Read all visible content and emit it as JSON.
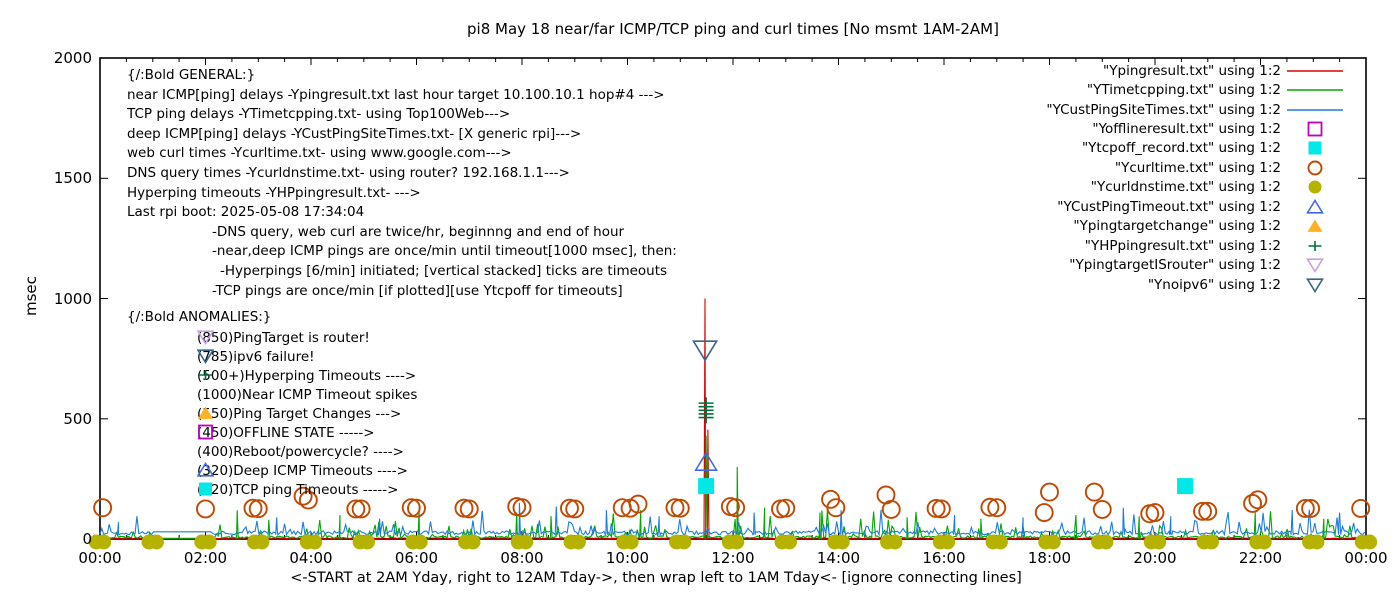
{
  "title": "pi8 May 18  near/far ICMP/TCP ping and curl times [No msmt 1AM-2AM]",
  "axes": {
    "ylabel": "msec",
    "y_ticks": [
      0,
      500,
      1000,
      1500,
      2000
    ],
    "x_ticks": [
      {
        "h": 0,
        "label": "00:00"
      },
      {
        "h": 2,
        "label": "02:00"
      },
      {
        "h": 4,
        "label": "04:00"
      },
      {
        "h": 6,
        "label": "06:00"
      },
      {
        "h": 8,
        "label": "08:00"
      },
      {
        "h": 10,
        "label": "10:00"
      },
      {
        "h": 12,
        "label": "12:00"
      },
      {
        "h": 14,
        "label": "14:00"
      },
      {
        "h": 16,
        "label": "16:00"
      },
      {
        "h": 18,
        "label": "18:00"
      },
      {
        "h": 20,
        "label": "20:00"
      },
      {
        "h": 22,
        "label": "22:00"
      },
      {
        "h": 24,
        "label": "00:00"
      }
    ],
    "caption": "<-START at 2AM Yday, right to 12AM Tday->, then wrap left to 1AM Tday<- [ignore connecting lines]"
  },
  "general_notes": {
    "lines": [
      {
        "t": "{/:Bold GENERAL:}",
        "i": 0
      },
      {
        "t": "near ICMP[ping] delays -Ypingresult.txt last hour target 10.100.10.1 hop#4 --->",
        "i": 0
      },
      {
        "t": "TCP ping delays -YTimetcpping.txt- using Top100Web--->",
        "i": 0
      },
      {
        "t": "deep ICMP[ping] delays -YCustPingSiteTimes.txt- [X generic rpi]--->",
        "i": 0
      },
      {
        "t": "web curl times -Ycurltime.txt- using www.google.com--->",
        "i": 0
      },
      {
        "t": "DNS query times -Ycurldnstime.txt- using router? 192.168.1.1--->",
        "i": 0
      },
      {
        "t": "Hyperping timeouts -YHPpingresult.txt- --->",
        "i": 0
      },
      {
        "t": "Last rpi boot: 2025-05-08 17:34:04",
        "i": 0
      },
      {
        "t": "-DNS query, web curl are twice/hr, beginnng and end of hour",
        "i": 85
      },
      {
        "t": "-near,deep ICMP pings are once/min until timeout[1000 msec], then:",
        "i": 85
      },
      {
        "t": "-Hyperpings [6/min] initiated; [vertical stacked] ticks are timeouts",
        "i": 93
      },
      {
        "t": "-TCP pings are once/min [if plotted][use Ytcpoff for timeouts]",
        "i": 85
      }
    ]
  },
  "anomalies": {
    "header": "{/:Bold ANOMALIES:}",
    "rows": [
      {
        "marker": "open-triangle-down",
        "color": "#c9a0e8",
        "text": "(850)PingTarget is router!"
      },
      {
        "marker": "open-triangle-down",
        "color": "#36648b",
        "text": "(785)ipv6 failure!"
      },
      {
        "marker": "plus",
        "color": "#007040",
        "text": "(500+)Hyperping Timeouts ---->"
      },
      {
        "marker": null,
        "color": null,
        "text": "(1000)Near ICMP Timeout spikes"
      },
      {
        "marker": "filled-triangle-up",
        "color": "#ffb025",
        "text": "(550)Ping Target Changes --->"
      },
      {
        "marker": "open-square",
        "color": "#bf00bf",
        "text": "(450)OFFLINE STATE ----->"
      },
      {
        "marker": null,
        "color": null,
        "text": "(400)Reboot/powercycle? ---->"
      },
      {
        "marker": "open-triangle-up",
        "color": "#4169e1",
        "text": "(320)Deep ICMP Timeouts ---->"
      },
      {
        "marker": "filled-square",
        "color": "#00e8e8",
        "text": "(220)TCP ping Timeouts ----->"
      }
    ]
  },
  "legend": {
    "items": [
      {
        "label": "\"Ypingresult.txt\" using 1:2",
        "marker": "line",
        "color": "#dc0000"
      },
      {
        "label": "\"YTimetcpping.txt\" using 1:2",
        "marker": "line",
        "color": "#00a800"
      },
      {
        "label": "\"YCustPingSiteTimes.txt\" using 1:2",
        "marker": "line",
        "color": "#1c7ce0"
      },
      {
        "label": "\"Yofflineresult.txt\" using 1:2",
        "marker": "open-square",
        "color": "#bf00bf"
      },
      {
        "label": "\"Ytcpoff_record.txt\" using 1:2",
        "marker": "filled-square",
        "color": "#00e8e8"
      },
      {
        "label": "\"Ycurltime.txt\" using 1:2",
        "marker": "open-circle",
        "color": "#c04800"
      },
      {
        "label": "\"Ycurldnstime.txt\" using 1:2",
        "marker": "filled-circle",
        "color": "#b5b300"
      },
      {
        "label": "\"YCustPingTimeout.txt\" using 1:2",
        "marker": "open-triangle-up",
        "color": "#4169e1"
      },
      {
        "label": "\"Ypingtargetchange\" using 1:2",
        "marker": "filled-triangle-up",
        "color": "#ffb025"
      },
      {
        "label": "\"YHPpingresult.txt\" using 1:2",
        "marker": "plus",
        "color": "#007040"
      },
      {
        "label": "\"YpingtargetISrouter\" using 1:2",
        "marker": "open-triangle-down",
        "color": "#c9a0e8"
      },
      {
        "label": "\"Ynoipv6\" using 1:2",
        "marker": "open-triangle-down",
        "color": "#36648b"
      }
    ]
  },
  "chart_data": {
    "type": "line",
    "title": "pi8 May 18  near/far ICMP/TCP ping and curl times [No msmt 1AM-2AM]",
    "xlabel": "<-START at 2AM Yday, right to 12AM Tday->, then wrap left to 1AM Tday<- [ignore connecting lines]",
    "ylabel": "msec",
    "ylim": [
      0,
      2000
    ],
    "x_range_hours": [
      0,
      24
    ],
    "grid": false,
    "legend_position": "top-right-inside",
    "no_measurement_gap_hours": [
      1.0,
      2.1
    ],
    "series": [
      {
        "name": "Ypingresult.txt",
        "desc": "near ICMP ping delay",
        "type": "line",
        "color": "#dc0000",
        "baseline_msec": 2,
        "noise": {
          "seed": 11,
          "jitter": 2,
          "p_mid": 0,
          "mid": [
            0,
            0
          ],
          "p_high": 0,
          "high": [
            0,
            0
          ],
          "gap_v": 2
        },
        "spikes": [
          [
            11.47,
            1000
          ],
          [
            11.525,
            455
          ]
        ]
      },
      {
        "name": "YTimetcpping.txt",
        "desc": "TCP ping delay",
        "type": "line",
        "color": "#00a800",
        "baseline_msec": 3,
        "noise": {
          "seed": 23,
          "jitter": 10,
          "p_mid": 0.12,
          "mid": [
            15,
            45
          ],
          "p_high": 0.02,
          "high": [
            60,
            60
          ],
          "gap_v": 3
        },
        "spikes": [
          [
            2.6,
            120
          ],
          [
            3.2,
            80
          ],
          [
            4.55,
            100
          ],
          [
            6.05,
            130
          ],
          [
            7.9,
            110
          ],
          [
            8.55,
            95
          ],
          [
            10.25,
            120
          ],
          [
            11.49,
            430
          ],
          [
            12.08,
            300
          ],
          [
            12.6,
            130
          ],
          [
            13.65,
            110
          ],
          [
            15.3,
            90
          ],
          [
            16.7,
            85
          ],
          [
            18.5,
            100
          ],
          [
            19.7,
            95
          ],
          [
            21.9,
            110
          ],
          [
            23.2,
            85
          ]
        ]
      },
      {
        "name": "YCustPingSiteTimes.txt",
        "desc": "deep ICMP ping delay",
        "type": "line",
        "color": "#1c7ce0",
        "baseline_msec": 18,
        "noise": {
          "seed": 37,
          "jitter": 16,
          "p_mid": 0.1,
          "mid": [
            38,
            40
          ],
          "p_high": 0.015,
          "high": [
            80,
            45
          ],
          "gap_v": 30
        },
        "spikes": [
          [
            0.35,
            70
          ],
          [
            3.35,
            90
          ],
          [
            5.3,
            85
          ],
          [
            7.95,
            150
          ],
          [
            8.65,
            135
          ],
          [
            9.6,
            120
          ],
          [
            10.6,
            95
          ],
          [
            12.4,
            110
          ],
          [
            14.05,
            120
          ],
          [
            16.2,
            100
          ],
          [
            17.5,
            90
          ],
          [
            19.4,
            130
          ],
          [
            20.3,
            95
          ],
          [
            22.6,
            120
          ],
          [
            23.5,
            110
          ]
        ]
      },
      {
        "name": "Yofflineresult.txt",
        "desc": "offline state (450)",
        "type": "points",
        "marker": "open-square",
        "color": "#bf00bf",
        "size": 16,
        "points": []
      },
      {
        "name": "Ytcpoff_record.txt",
        "desc": "TCP ping timeouts (220)",
        "type": "points",
        "marker": "filled-square",
        "color": "#00e8e8",
        "size": 16,
        "points": [
          [
            11.49,
            220
          ],
          [
            20.57,
            220
          ]
        ]
      },
      {
        "name": "Ycurltime.txt",
        "desc": "web curl times",
        "type": "points",
        "marker": "open-circle",
        "color": "#c04800",
        "size": 17,
        "points": [
          [
            0.05,
            130
          ],
          [
            2.0,
            125
          ],
          [
            2.9,
            128
          ],
          [
            3.0,
            126
          ],
          [
            3.85,
            178
          ],
          [
            3.95,
            162
          ],
          [
            4.85,
            125
          ],
          [
            4.95,
            125
          ],
          [
            5.9,
            130
          ],
          [
            6.0,
            128
          ],
          [
            6.9,
            128
          ],
          [
            7.0,
            125
          ],
          [
            7.9,
            135
          ],
          [
            8.0,
            130
          ],
          [
            8.9,
            128
          ],
          [
            9.0,
            125
          ],
          [
            9.9,
            130
          ],
          [
            10.05,
            128
          ],
          [
            10.2,
            145
          ],
          [
            10.9,
            130
          ],
          [
            11.0,
            128
          ],
          [
            11.95,
            135
          ],
          [
            12.05,
            130
          ],
          [
            12.9,
            125
          ],
          [
            13.0,
            128
          ],
          [
            13.85,
            165
          ],
          [
            13.95,
            130
          ],
          [
            14.9,
            183
          ],
          [
            15.0,
            123
          ],
          [
            15.85,
            127
          ],
          [
            15.95,
            125
          ],
          [
            16.87,
            132
          ],
          [
            17.0,
            130
          ],
          [
            17.9,
            110
          ],
          [
            18.0,
            195
          ],
          [
            18.85,
            195
          ],
          [
            19.0,
            123
          ],
          [
            19.9,
            105
          ],
          [
            20.0,
            110
          ],
          [
            20.9,
            115
          ],
          [
            21.0,
            115
          ],
          [
            21.85,
            148
          ],
          [
            21.95,
            163
          ],
          [
            22.85,
            127
          ],
          [
            22.95,
            127
          ],
          [
            23.9,
            127
          ]
        ]
      },
      {
        "name": "Ycurldnstime.txt",
        "desc": "DNS query times (~0 msec, twice/hr)",
        "type": "points",
        "marker": "filled-circle",
        "color": "#b5b300",
        "size": 15,
        "points_hourly": {
          "hours_start": 0,
          "hours_end": 24,
          "value_msec": 0,
          "pair_offset_hours": 0.07
        }
      },
      {
        "name": "YCustPingTimeout.txt",
        "desc": "deep ICMP timeouts (320)",
        "type": "points",
        "marker": "open-triangle-up",
        "color": "#4169e1",
        "size": 18,
        "points": [
          [
            11.49,
            320
          ]
        ]
      },
      {
        "name": "Ypingtargetchange",
        "desc": "ping target changes (550)",
        "type": "points",
        "marker": "filled-triangle-up",
        "color": "#ffb025",
        "size": 18,
        "points": []
      },
      {
        "name": "YHPpingresult.txt",
        "desc": "hyperping timeouts stacked ticks (500+)",
        "type": "points",
        "marker": "plus",
        "color": "#007040",
        "size": 15,
        "points": [
          [
            11.49,
            505
          ],
          [
            11.49,
            520
          ],
          [
            11.49,
            535
          ],
          [
            11.49,
            550
          ],
          [
            11.49,
            565
          ]
        ]
      },
      {
        "name": "YpingtargetISrouter",
        "desc": "ping target is router (850)",
        "type": "points",
        "marker": "open-triangle-down",
        "color": "#c9a0e8",
        "size": 18,
        "points": []
      },
      {
        "name": "Ynoipv6",
        "desc": "ipv6 failure (785)",
        "type": "points",
        "marker": "open-triangle-down",
        "color": "#36648b",
        "size": 20,
        "points": [
          [
            11.47,
            785
          ]
        ]
      }
    ]
  }
}
